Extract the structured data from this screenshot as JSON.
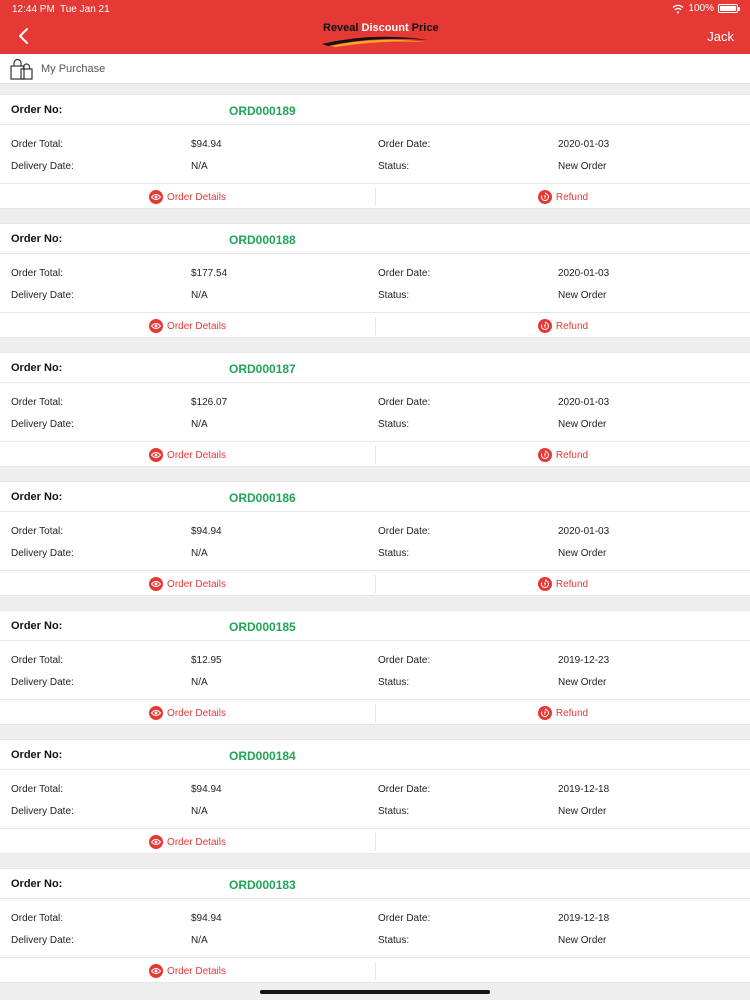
{
  "status_bar": {
    "time": "12:44 PM",
    "date": "Tue Jan 21",
    "battery": "100%",
    "battery_level": 1.0
  },
  "header": {
    "logo": {
      "text_1": "Reveal",
      "text_2": "Discount",
      "text_3": "Price"
    },
    "user_name": "Jack",
    "accent_color": "#e53935"
  },
  "purchase_bar": {
    "title": "My Purchase"
  },
  "labels": {
    "order_no": "Order No:",
    "order_total": "Order Total:",
    "order_date": "Order Date:",
    "delivery_date": "Delivery Date:",
    "status": "Status:",
    "order_details": "Order Details",
    "refund": "Refund"
  },
  "orders": [
    {
      "number": "ORD000189",
      "total": "$94.94",
      "date": "2020-01-03",
      "delivery": "N/A",
      "status": "New Order",
      "refund": true
    },
    {
      "number": "ORD000188",
      "total": "$177.54",
      "date": "2020-01-03",
      "delivery": "N/A",
      "status": "New Order",
      "refund": true
    },
    {
      "number": "ORD000187",
      "total": "$126.07",
      "date": "2020-01-03",
      "delivery": "N/A",
      "status": "New Order",
      "refund": true
    },
    {
      "number": "ORD000186",
      "total": "$94.94",
      "date": "2020-01-03",
      "delivery": "N/A",
      "status": "New Order",
      "refund": true
    },
    {
      "number": "ORD000185",
      "total": "$12.95",
      "date": "2019-12-23",
      "delivery": "N/A",
      "status": "New Order",
      "refund": true
    },
    {
      "number": "ORD000184",
      "total": "$94.94",
      "date": "2019-12-18",
      "delivery": "N/A",
      "status": "New Order",
      "refund": false
    },
    {
      "number": "ORD000183",
      "total": "$94.94",
      "date": "2019-12-18",
      "delivery": "N/A",
      "status": "New Order",
      "refund": false
    }
  ],
  "icons": {
    "back": "chevron-left-icon",
    "bag": "shopping-bag-icon",
    "details": "eye-icon",
    "refund": "refund-icon",
    "wifi": "wifi-icon",
    "battery": "battery-icon"
  }
}
